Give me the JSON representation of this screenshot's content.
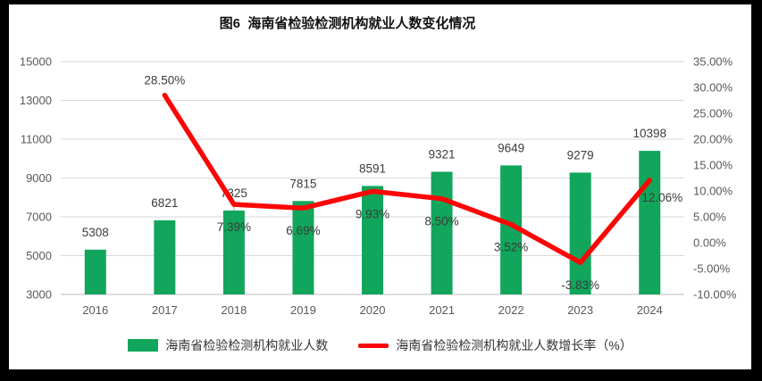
{
  "title": "图6  海南省检验检测机构就业人数变化情况",
  "frame": {
    "border_color": "#000000",
    "background": "#ffffff"
  },
  "chart_data": {
    "type": "combo-bar-line",
    "title": "图6  海南省检验检测机构就业人数变化情况",
    "categories": [
      "2016",
      "2017",
      "2018",
      "2019",
      "2020",
      "2021",
      "2022",
      "2023",
      "2024"
    ],
    "series": [
      {
        "name": "海南省检验检测机构就业人数",
        "type": "bar",
        "axis": "primary",
        "color": "#11A65B",
        "values": [
          5308,
          6821,
          7325,
          7815,
          8591,
          9321,
          9649,
          9279,
          10398
        ],
        "data_labels": [
          "5308",
          "6821",
          "7325",
          "7815",
          "8591",
          "9321",
          "9649",
          "9279",
          "10398"
        ]
      },
      {
        "name": "海南省检验检测机构就业人数增长率（%）",
        "type": "line",
        "axis": "secondary",
        "color": "#FB0606",
        "values": [
          null,
          28.5,
          7.39,
          6.69,
          9.93,
          8.5,
          3.52,
          -3.83,
          12.06
        ],
        "data_labels": [
          null,
          "28.50%",
          "7.39%",
          "6.69%",
          "9.93%",
          "8.50%",
          "3.52%",
          "-3.83%",
          "12.06%"
        ]
      }
    ],
    "axis_primary": {
      "min": 3000,
      "max": 15000,
      "step": 2000,
      "ticks": [
        "15000",
        "13000",
        "11000",
        "9000",
        "7000",
        "5000",
        "3000"
      ]
    },
    "axis_secondary": {
      "min": -10,
      "max": 35,
      "step": 5,
      "ticks": [
        "35.00%",
        "30.00%",
        "25.00%",
        "20.00%",
        "15.00%",
        "10.00%",
        "5.00%",
        "0.00%",
        "-5.00%",
        "-10.00%"
      ]
    },
    "grid": true,
    "gridline_color": "#D9D9D9",
    "axis_line_color": "#BFBFBF",
    "tick_label_color": "#595959",
    "data_label_color": "#3B3B3B",
    "legend_position": "bottom",
    "xlabel": "",
    "ylabel": ""
  },
  "legend": {
    "items": [
      {
        "label": "海南省检验检测机构就业人数",
        "color": "#11A65B",
        "marker": "bar"
      },
      {
        "label": "海南省检验检测机构就业人数增长率（%）",
        "color": "#FB0606",
        "marker": "line"
      }
    ]
  }
}
